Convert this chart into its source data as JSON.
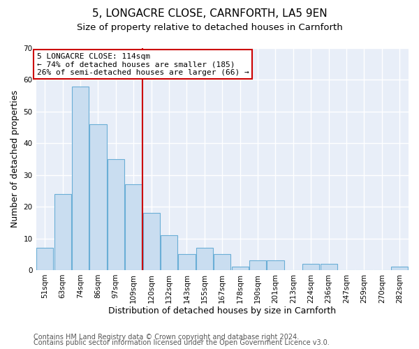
{
  "title1": "5, LONGACRE CLOSE, CARNFORTH, LA5 9EN",
  "title2": "Size of property relative to detached houses in Carnforth",
  "xlabel": "Distribution of detached houses by size in Carnforth",
  "ylabel": "Number of detached properties",
  "categories": [
    "51sqm",
    "63sqm",
    "74sqm",
    "86sqm",
    "97sqm",
    "109sqm",
    "120sqm",
    "132sqm",
    "143sqm",
    "155sqm",
    "167sqm",
    "178sqm",
    "190sqm",
    "201sqm",
    "213sqm",
    "224sqm",
    "236sqm",
    "247sqm",
    "259sqm",
    "270sqm",
    "282sqm"
  ],
  "values": [
    7,
    24,
    58,
    46,
    35,
    27,
    18,
    11,
    5,
    7,
    5,
    1,
    3,
    3,
    0,
    2,
    2,
    0,
    0,
    0,
    1
  ],
  "bar_color": "#c9ddf0",
  "bar_edge_color": "#6aaed6",
  "vline_x_index": 5.5,
  "vline_color": "#cc0000",
  "annotation_line1": "5 LONGACRE CLOSE: 114sqm",
  "annotation_line2": "← 74% of detached houses are smaller (185)",
  "annotation_line3": "26% of semi-detached houses are larger (66) →",
  "annotation_box_facecolor": "#ffffff",
  "annotation_box_edgecolor": "#cc0000",
  "ylim": [
    0,
    70
  ],
  "yticks": [
    0,
    10,
    20,
    30,
    40,
    50,
    60,
    70
  ],
  "bg_color": "#ffffff",
  "plot_bg_color": "#e8eef8",
  "grid_color": "#ffffff",
  "title1_fontsize": 11,
  "title2_fontsize": 9.5,
  "axis_label_fontsize": 9,
  "tick_fontsize": 7.5,
  "annotation_fontsize": 8,
  "footer1": "Contains HM Land Registry data © Crown copyright and database right 2024.",
  "footer2": "Contains public sector information licensed under the Open Government Licence v3.0.",
  "footer_fontsize": 7
}
